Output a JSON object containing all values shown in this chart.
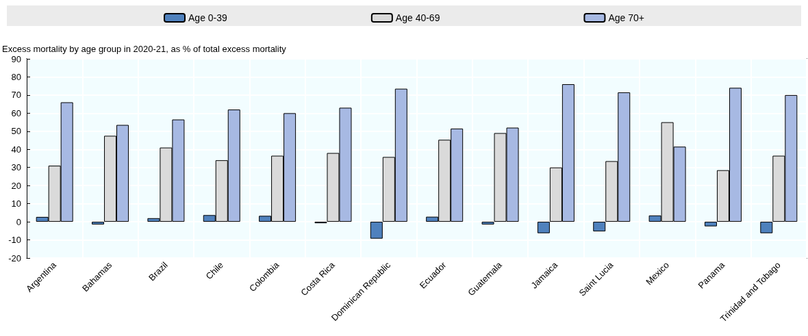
{
  "chart_data": {
    "type": "bar",
    "ylabel": "Excess mortality by age group in 2020-21, as % of total excess mortality",
    "categories": [
      "Argentina",
      "Bahamas",
      "Brazil",
      "Chile",
      "Colombia",
      "Costa Rica",
      "Dominican Republic",
      "Ecuador",
      "Guatemala",
      "Jamaica",
      "Saint Lucia",
      "Mexico",
      "Panama",
      "Trinidad and Tobago"
    ],
    "series": [
      {
        "name": "Age 0-39",
        "color": "#4f81bd",
        "values": [
          2.7,
          -1.5,
          2,
          3.7,
          3.3,
          -0.8,
          -9.3,
          2.8,
          -1.5,
          -6.3,
          -5.3,
          3.5,
          -2.5,
          -6.3
        ]
      },
      {
        "name": "Age 40-69",
        "color": "#dadada",
        "values": [
          31,
          47.5,
          41,
          34,
          36.5,
          38,
          35.8,
          45.3,
          49,
          30,
          33.5,
          55,
          28.5,
          36.5
        ]
      },
      {
        "name": "Age 70+",
        "color": "#a7b9e3",
        "values": [
          66,
          53.5,
          56.5,
          62,
          60,
          63,
          73.5,
          51.5,
          52,
          76,
          71.5,
          41.5,
          74,
          70
        ]
      }
    ],
    "ylim": [
      -20,
      90
    ],
    "yticks": [
      -20,
      -10,
      0,
      10,
      20,
      30,
      40,
      50,
      60,
      70,
      80,
      90
    ],
    "grid": true,
    "legend": "top"
  }
}
